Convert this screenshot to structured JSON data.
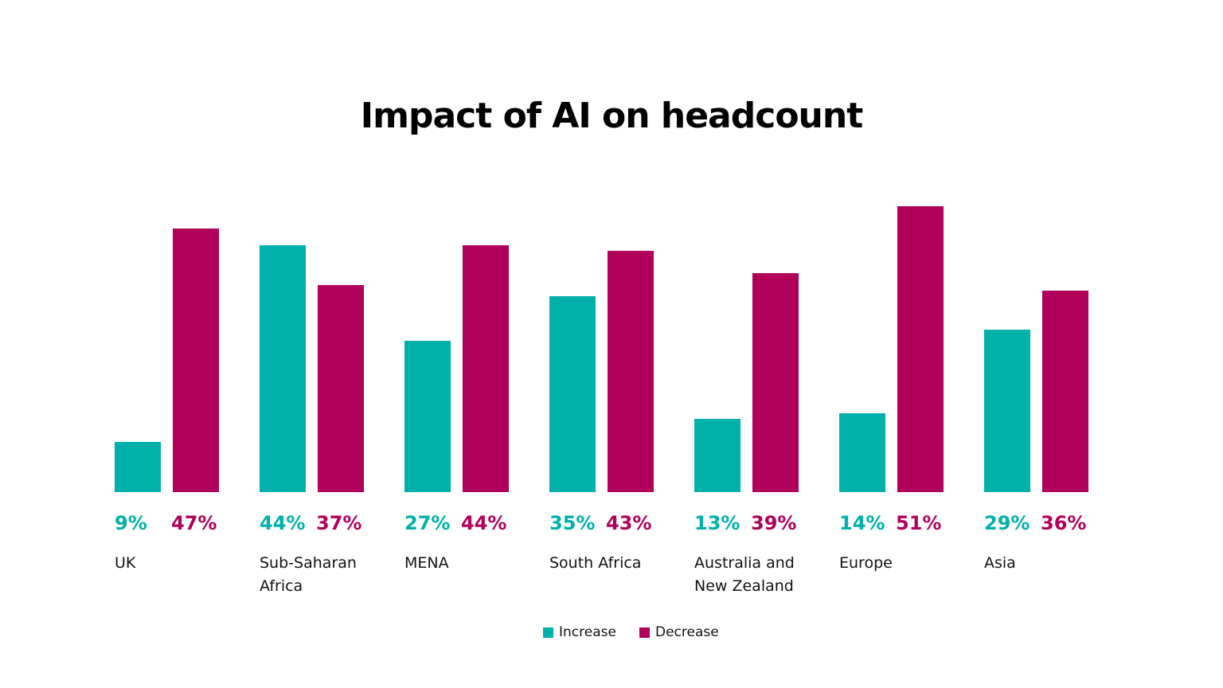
{
  "chart_data": {
    "type": "bar",
    "title": "Impact of AI on headcount",
    "categories": [
      "UK",
      "Sub-Saharan Africa",
      "MENA",
      "South Africa",
      "Australia and New Zealand",
      "Europe",
      "Asia"
    ],
    "series": [
      {
        "name": "Increase",
        "color": "#00b0ab",
        "values": [
          9,
          44,
          27,
          35,
          13,
          14,
          29
        ],
        "value_labels": [
          "9%",
          "44%",
          "27%",
          "35%",
          "13%",
          "14%",
          "29%"
        ]
      },
      {
        "name": "Decrease",
        "color": "#b0005a",
        "values": [
          47,
          37,
          44,
          43,
          39,
          51,
          36
        ],
        "value_labels": [
          "47%",
          "37%",
          "44%",
          "43%",
          "39%",
          "51%",
          "36%"
        ]
      }
    ]
  }
}
